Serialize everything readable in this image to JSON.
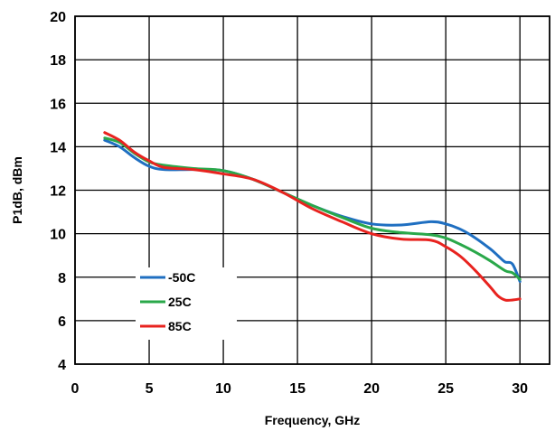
{
  "chart_data": {
    "type": "line",
    "title": "",
    "xlabel": "Frequency, GHz",
    "ylabel": "P1dB, dBm",
    "xlim": [
      0,
      32
    ],
    "ylim": [
      4,
      20
    ],
    "xticks": [
      0,
      5,
      10,
      15,
      20,
      25,
      30
    ],
    "yticks": [
      4,
      6,
      8,
      10,
      12,
      14,
      16,
      18,
      20
    ],
    "grid": true,
    "legend_position": "lower-left inside",
    "series": [
      {
        "name": "-50C",
        "color": "#1f6fc1",
        "x": [
          2,
          3,
          4,
          5,
          6,
          8,
          10,
          12,
          14,
          16,
          18,
          20,
          22,
          24,
          25,
          26,
          27,
          28,
          28.5,
          29,
          29.5,
          30
        ],
        "y": [
          14.3,
          14.0,
          13.5,
          13.1,
          12.95,
          12.95,
          12.9,
          12.5,
          11.9,
          11.3,
          10.8,
          10.45,
          10.4,
          10.55,
          10.45,
          10.2,
          9.8,
          9.3,
          9.0,
          8.7,
          8.6,
          7.8
        ]
      },
      {
        "name": "25C",
        "color": "#2aa84a",
        "x": [
          2,
          3,
          4,
          5,
          6,
          8,
          10,
          12,
          14,
          16,
          18,
          20,
          22,
          24,
          25,
          26,
          27,
          28,
          29,
          29.5,
          30
        ],
        "y": [
          14.4,
          14.2,
          13.7,
          13.3,
          13.15,
          13.0,
          12.9,
          12.5,
          11.9,
          11.3,
          10.75,
          10.25,
          10.05,
          9.95,
          9.8,
          9.5,
          9.15,
          8.75,
          8.3,
          8.2,
          7.9
        ]
      },
      {
        "name": "85C",
        "color": "#e8231f",
        "x": [
          2,
          3,
          4,
          5,
          6,
          8,
          10,
          12,
          14,
          16,
          18,
          20,
          22,
          24,
          25,
          26,
          27,
          28,
          28.5,
          29,
          29.5,
          30
        ],
        "y": [
          14.65,
          14.3,
          13.75,
          13.35,
          13.05,
          12.95,
          12.75,
          12.5,
          11.9,
          11.15,
          10.55,
          10.0,
          9.75,
          9.7,
          9.4,
          8.95,
          8.3,
          7.55,
          7.15,
          6.95,
          6.95,
          7.0
        ]
      }
    ]
  }
}
